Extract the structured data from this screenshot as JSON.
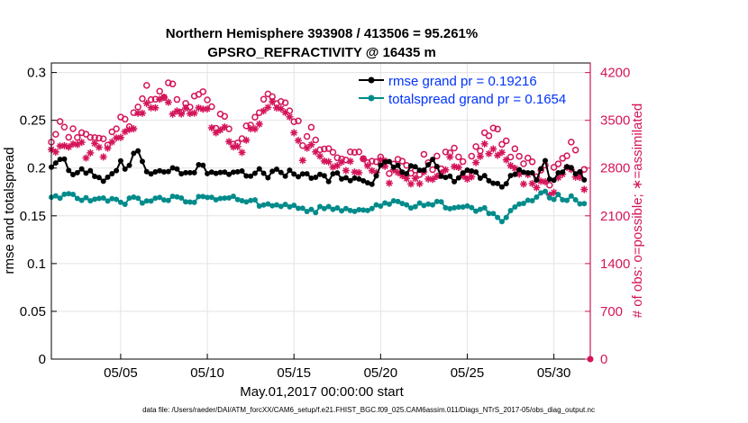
{
  "chart_data": {
    "type": "line",
    "title": "Northern Hemisphere 393908 / 413506 = 95.261%",
    "subtitle": "GPSRO_REFRACTIVITY @ 16435 m",
    "xlabel": "May.01,2017 00:00:00 start",
    "ylabel_left": "rmse and totalspread",
    "ylabel_right": "# of obs: o=possible; ∗=assimilated",
    "footnote": "data file: /Users/raeder/DAI/ATM_forcXX/CAM6_setup/f.e21.FHIST_BGC.f09_025.CAM6assim.011/Diags_NTrS_2017-05/obs_diag_output.nc",
    "xlim": [
      1,
      32.1
    ],
    "ylim_left": [
      0,
      0.31
    ],
    "ylim_right": [
      0,
      4340
    ],
    "x_ticks": [
      5,
      10,
      15,
      20,
      25,
      30
    ],
    "x_tick_labels": [
      "05/05",
      "05/10",
      "05/15",
      "05/20",
      "05/25",
      "05/30"
    ],
    "y_ticks_left": [
      0,
      0.05,
      0.1,
      0.15,
      0.2,
      0.25,
      0.3
    ],
    "y_tick_labels_left": [
      "0",
      "0.05",
      "0.1",
      "0.15",
      "0.2",
      "0.25",
      "0.3"
    ],
    "y_ticks_right": [
      0,
      700,
      1400,
      2100,
      2800,
      3500,
      4200
    ],
    "y_tick_labels_right": [
      "0",
      "700",
      "1400",
      "2100",
      "2800",
      "3500",
      "4200"
    ],
    "grid": true,
    "legend_position": "top-right",
    "colors": {
      "rmse": "#000000",
      "totalspread": "#008b8b",
      "obs": "#d4145a",
      "legend_text": "#0033ff"
    },
    "series": [
      {
        "name": "rmse grand pr = 0.19216",
        "axis": "left",
        "anchors": [
          [
            1.0,
            0.199
          ],
          [
            1.3,
            0.203
          ],
          [
            1.6,
            0.211
          ],
          [
            2.0,
            0.197
          ],
          [
            2.5,
            0.197
          ],
          [
            3.0,
            0.195
          ],
          [
            3.5,
            0.193
          ],
          [
            4.0,
            0.188
          ],
          [
            4.5,
            0.195
          ],
          [
            5.0,
            0.205
          ],
          [
            5.4,
            0.198
          ],
          [
            5.9,
            0.22
          ],
          [
            6.4,
            0.2
          ],
          [
            7.0,
            0.196
          ],
          [
            7.5,
            0.193
          ],
          [
            8.0,
            0.2
          ],
          [
            8.5,
            0.196
          ],
          [
            9.0,
            0.195
          ],
          [
            9.5,
            0.2
          ],
          [
            10.0,
            0.198
          ],
          [
            10.5,
            0.193
          ],
          [
            11.0,
            0.195
          ],
          [
            11.5,
            0.194
          ],
          [
            12.0,
            0.196
          ],
          [
            12.5,
            0.194
          ],
          [
            13.0,
            0.2
          ],
          [
            13.5,
            0.192
          ],
          [
            14.0,
            0.196
          ],
          [
            14.5,
            0.193
          ],
          [
            15.0,
            0.195
          ],
          [
            15.5,
            0.193
          ],
          [
            16.0,
            0.19
          ],
          [
            16.5,
            0.194
          ],
          [
            17.0,
            0.188
          ],
          [
            17.5,
            0.193
          ],
          [
            18.0,
            0.186
          ],
          [
            18.5,
            0.192
          ],
          [
            19.0,
            0.185
          ],
          [
            19.5,
            0.185
          ],
          [
            20.0,
            0.2
          ],
          [
            20.5,
            0.205
          ],
          [
            21.0,
            0.2
          ],
          [
            21.5,
            0.194
          ],
          [
            22.0,
            0.205
          ],
          [
            22.5,
            0.198
          ],
          [
            23.0,
            0.208
          ],
          [
            23.5,
            0.191
          ],
          [
            24.0,
            0.188
          ],
          [
            24.5,
            0.19
          ],
          [
            25.0,
            0.2
          ],
          [
            25.5,
            0.195
          ],
          [
            26.0,
            0.19
          ],
          [
            26.5,
            0.186
          ],
          [
            27.0,
            0.183
          ],
          [
            27.5,
            0.192
          ],
          [
            28.0,
            0.195
          ],
          [
            28.5,
            0.198
          ],
          [
            29.0,
            0.19
          ],
          [
            29.4,
            0.21
          ],
          [
            29.8,
            0.185
          ],
          [
            30.2,
            0.192
          ],
          [
            30.6,
            0.197
          ],
          [
            31.0,
            0.2
          ],
          [
            31.4,
            0.193
          ],
          [
            31.8,
            0.19
          ]
        ],
        "jitter": 0.004
      },
      {
        "name": "totalspread grand pr = 0.1654",
        "axis": "left",
        "anchors": [
          [
            1.0,
            0.172
          ],
          [
            1.5,
            0.17
          ],
          [
            2.0,
            0.174
          ],
          [
            2.5,
            0.166
          ],
          [
            3.0,
            0.17
          ],
          [
            3.5,
            0.165
          ],
          [
            4.0,
            0.166
          ],
          [
            4.5,
            0.168
          ],
          [
            5.0,
            0.164
          ],
          [
            5.5,
            0.166
          ],
          [
            6.0,
            0.168
          ],
          [
            6.5,
            0.164
          ],
          [
            7.0,
            0.168
          ],
          [
            7.5,
            0.166
          ],
          [
            8.0,
            0.17
          ],
          [
            8.5,
            0.166
          ],
          [
            9.0,
            0.164
          ],
          [
            9.5,
            0.168
          ],
          [
            10.0,
            0.17
          ],
          [
            10.5,
            0.166
          ],
          [
            11.0,
            0.166
          ],
          [
            11.5,
            0.168
          ],
          [
            12.0,
            0.164
          ],
          [
            12.5,
            0.166
          ],
          [
            13.0,
            0.162
          ],
          [
            13.5,
            0.16
          ],
          [
            14.0,
            0.16
          ],
          [
            14.5,
            0.164
          ],
          [
            15.0,
            0.16
          ],
          [
            15.5,
            0.156
          ],
          [
            16.0,
            0.154
          ],
          [
            16.5,
            0.158
          ],
          [
            17.0,
            0.16
          ],
          [
            17.5,
            0.156
          ],
          [
            18.0,
            0.155
          ],
          [
            18.5,
            0.156
          ],
          [
            19.0,
            0.156
          ],
          [
            19.5,
            0.158
          ],
          [
            20.0,
            0.16
          ],
          [
            20.5,
            0.162
          ],
          [
            21.0,
            0.165
          ],
          [
            21.5,
            0.16
          ],
          [
            22.0,
            0.162
          ],
          [
            22.5,
            0.16
          ],
          [
            23.0,
            0.164
          ],
          [
            23.5,
            0.162
          ],
          [
            24.0,
            0.158
          ],
          [
            24.5,
            0.16
          ],
          [
            25.0,
            0.158
          ],
          [
            25.5,
            0.156
          ],
          [
            26.0,
            0.158
          ],
          [
            26.5,
            0.152
          ],
          [
            27.0,
            0.146
          ],
          [
            27.5,
            0.156
          ],
          [
            28.0,
            0.162
          ],
          [
            28.5,
            0.166
          ],
          [
            29.0,
            0.168
          ],
          [
            29.4,
            0.18
          ],
          [
            29.8,
            0.166
          ],
          [
            30.2,
            0.174
          ],
          [
            30.6,
            0.168
          ],
          [
            31.0,
            0.17
          ],
          [
            31.4,
            0.166
          ],
          [
            31.8,
            0.162
          ]
        ],
        "jitter": 0.003
      },
      {
        "name": "possible",
        "axis": "right",
        "marker": "o",
        "anchors": [
          [
            1.0,
            3200
          ],
          [
            1.5,
            3400
          ],
          [
            2.0,
            3300
          ],
          [
            2.5,
            3350
          ],
          [
            3.0,
            3200
          ],
          [
            3.5,
            3250
          ],
          [
            4.0,
            3200
          ],
          [
            4.5,
            3300
          ],
          [
            5.0,
            3450
          ],
          [
            5.5,
            3500
          ],
          [
            6.0,
            3650
          ],
          [
            6.5,
            3900
          ],
          [
            7.0,
            3900
          ],
          [
            7.5,
            3950
          ],
          [
            8.0,
            3950
          ],
          [
            8.5,
            3700
          ],
          [
            9.0,
            3800
          ],
          [
            9.5,
            3850
          ],
          [
            10.0,
            3850
          ],
          [
            10.5,
            3500
          ],
          [
            11.0,
            3500
          ],
          [
            11.5,
            3250
          ],
          [
            12.0,
            3200
          ],
          [
            12.5,
            3550
          ],
          [
            13.0,
            3700
          ],
          [
            13.5,
            3950
          ],
          [
            14.0,
            3850
          ],
          [
            14.5,
            3800
          ],
          [
            15.0,
            3550
          ],
          [
            15.5,
            3200
          ],
          [
            16.0,
            3400
          ],
          [
            16.5,
            3100
          ],
          [
            17.0,
            3100
          ],
          [
            17.5,
            3050
          ],
          [
            18.0,
            3000
          ],
          [
            18.5,
            3000
          ],
          [
            19.0,
            3050
          ],
          [
            19.5,
            2900
          ],
          [
            20.0,
            3050
          ],
          [
            20.5,
            2800
          ],
          [
            21.0,
            2900
          ],
          [
            21.5,
            2800
          ],
          [
            22.0,
            2700
          ],
          [
            22.5,
            2900
          ],
          [
            23.0,
            2850
          ],
          [
            23.5,
            2900
          ],
          [
            24.0,
            3100
          ],
          [
            24.5,
            2900
          ],
          [
            25.0,
            2800
          ],
          [
            25.5,
            3000
          ],
          [
            26.0,
            3200
          ],
          [
            26.5,
            3300
          ],
          [
            27.0,
            3250
          ],
          [
            27.5,
            3050
          ],
          [
            28.0,
            2900
          ],
          [
            28.5,
            2850
          ],
          [
            29.0,
            2700
          ],
          [
            29.4,
            2950
          ],
          [
            29.8,
            2600
          ],
          [
            30.2,
            2900
          ],
          [
            30.6,
            3000
          ],
          [
            31.0,
            3100
          ],
          [
            31.4,
            2900
          ],
          [
            31.8,
            2700
          ]
        ],
        "jitter": 120
      },
      {
        "name": "assimilated",
        "axis": "right",
        "marker": "*",
        "anchors": [
          [
            1.0,
            3000
          ],
          [
            1.5,
            3150
          ],
          [
            2.0,
            3100
          ],
          [
            2.5,
            3200
          ],
          [
            3.0,
            3050
          ],
          [
            3.5,
            3100
          ],
          [
            4.0,
            3050
          ],
          [
            4.5,
            3150
          ],
          [
            5.0,
            3300
          ],
          [
            5.5,
            3350
          ],
          [
            6.0,
            3500
          ],
          [
            6.5,
            3700
          ],
          [
            7.0,
            3700
          ],
          [
            7.5,
            3750
          ],
          [
            8.0,
            3700
          ],
          [
            8.5,
            3550
          ],
          [
            9.0,
            3600
          ],
          [
            9.5,
            3650
          ],
          [
            10.0,
            3650
          ],
          [
            10.5,
            3350
          ],
          [
            11.0,
            3350
          ],
          [
            11.5,
            3050
          ],
          [
            12.0,
            3000
          ],
          [
            12.5,
            3350
          ],
          [
            13.0,
            3550
          ],
          [
            13.5,
            3700
          ],
          [
            14.0,
            3700
          ],
          [
            14.5,
            3650
          ],
          [
            15.0,
            3350
          ],
          [
            15.5,
            3000
          ],
          [
            16.0,
            3200
          ],
          [
            16.5,
            2950
          ],
          [
            17.0,
            2900
          ],
          [
            17.5,
            2850
          ],
          [
            18.0,
            2800
          ],
          [
            18.5,
            2800
          ],
          [
            19.0,
            2850
          ],
          [
            19.5,
            2700
          ],
          [
            20.0,
            2850
          ],
          [
            20.5,
            2650
          ],
          [
            21.0,
            2750
          ],
          [
            21.5,
            2650
          ],
          [
            22.0,
            2550
          ],
          [
            22.5,
            2700
          ],
          [
            23.0,
            2650
          ],
          [
            23.5,
            2700
          ],
          [
            24.0,
            2900
          ],
          [
            24.5,
            2750
          ],
          [
            25.0,
            2650
          ],
          [
            25.5,
            2850
          ],
          [
            26.0,
            3050
          ],
          [
            26.5,
            3100
          ],
          [
            27.0,
            3050
          ],
          [
            27.5,
            2850
          ],
          [
            28.0,
            2700
          ],
          [
            28.5,
            2650
          ],
          [
            29.0,
            2500
          ],
          [
            29.4,
            2750
          ],
          [
            29.8,
            2300
          ],
          [
            30.2,
            2700
          ],
          [
            30.6,
            2750
          ],
          [
            31.0,
            2800
          ],
          [
            31.4,
            2650
          ],
          [
            31.8,
            2450
          ]
        ],
        "jitter": 110
      }
    ]
  }
}
